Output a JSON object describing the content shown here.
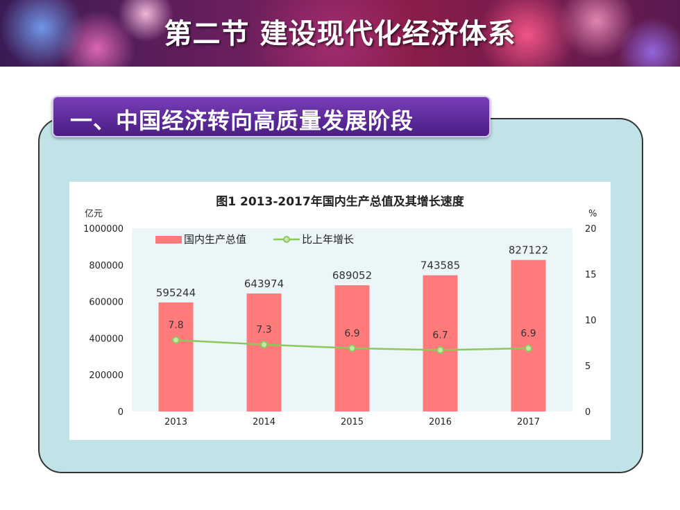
{
  "header": {
    "title": "第二节  建设现代化经济体系"
  },
  "section": {
    "label": "一、中国经济转向高质量发展阶段"
  },
  "colors": {
    "bar": "#ff7b7b",
    "line": "#8dc85a",
    "panel": "#bfe3e6",
    "plot_bg": "#eaf6f8"
  },
  "chart_data": {
    "type": "bar",
    "title": "图1    2013-2017年国内生产总值及其增长速度",
    "categories": [
      "2013",
      "2014",
      "2015",
      "2016",
      "2017"
    ],
    "series": [
      {
        "name": "国内生产总值",
        "type": "bar",
        "axis": "left",
        "values": [
          595244,
          643974,
          689052,
          743585,
          827122
        ],
        "labels": [
          "595244",
          "643974",
          "689052",
          "743585",
          "827122"
        ]
      },
      {
        "name": "比上年增长",
        "type": "line",
        "axis": "right",
        "values": [
          7.8,
          7.3,
          6.9,
          6.7,
          6.9
        ],
        "labels": [
          "7.8",
          "7.3",
          "6.9",
          "6.7",
          "6.9"
        ]
      }
    ],
    "y_left": {
      "unit": "亿元",
      "ylim": [
        0,
        1000000
      ],
      "ticks": [
        "0",
        "200000",
        "400000",
        "600000",
        "800000",
        "1000000"
      ]
    },
    "y_right": {
      "unit": "%",
      "ylim": [
        0,
        20
      ],
      "ticks": [
        "0",
        "5",
        "10",
        "15",
        "20"
      ]
    },
    "legend_position": "top-left",
    "grid": false
  }
}
